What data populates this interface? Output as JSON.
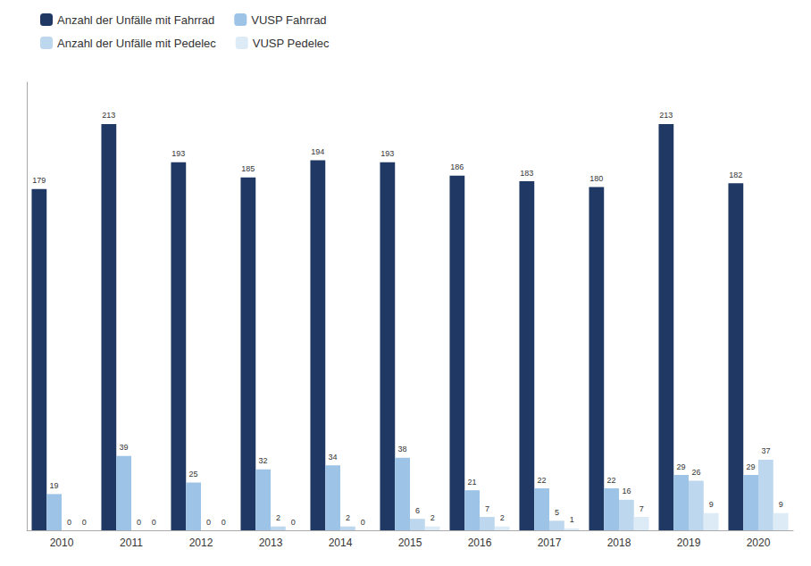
{
  "chart_data": {
    "type": "bar",
    "categories": [
      "2010",
      "2011",
      "2012",
      "2013",
      "2014",
      "2015",
      "2016",
      "2017",
      "2018",
      "2019",
      "2020"
    ],
    "series": [
      {
        "name": "Anzahl der Unfälle mit Fahrrad",
        "color": "#1F3864",
        "values": [
          179,
          213,
          193,
          185,
          194,
          193,
          186,
          183,
          180,
          213,
          182
        ]
      },
      {
        "name": "VUSP Fahrrad",
        "color": "#9DC3E6",
        "values": [
          19,
          39,
          25,
          32,
          34,
          38,
          21,
          22,
          22,
          29,
          29
        ]
      },
      {
        "name": "Anzahl der Unfälle mit Pedelec",
        "color": "#BDD7EE",
        "values": [
          0,
          0,
          0,
          2,
          2,
          6,
          7,
          5,
          16,
          26,
          37
        ]
      },
      {
        "name": "VUSP Pedelec",
        "color": "#DDEBF7",
        "values": [
          0,
          0,
          0,
          0,
          0,
          2,
          2,
          1,
          7,
          9,
          9
        ]
      }
    ],
    "ylim": [
      0,
      235
    ],
    "grid": false,
    "legend": "upper left",
    "data_labels": true,
    "tick_labels": "x"
  }
}
